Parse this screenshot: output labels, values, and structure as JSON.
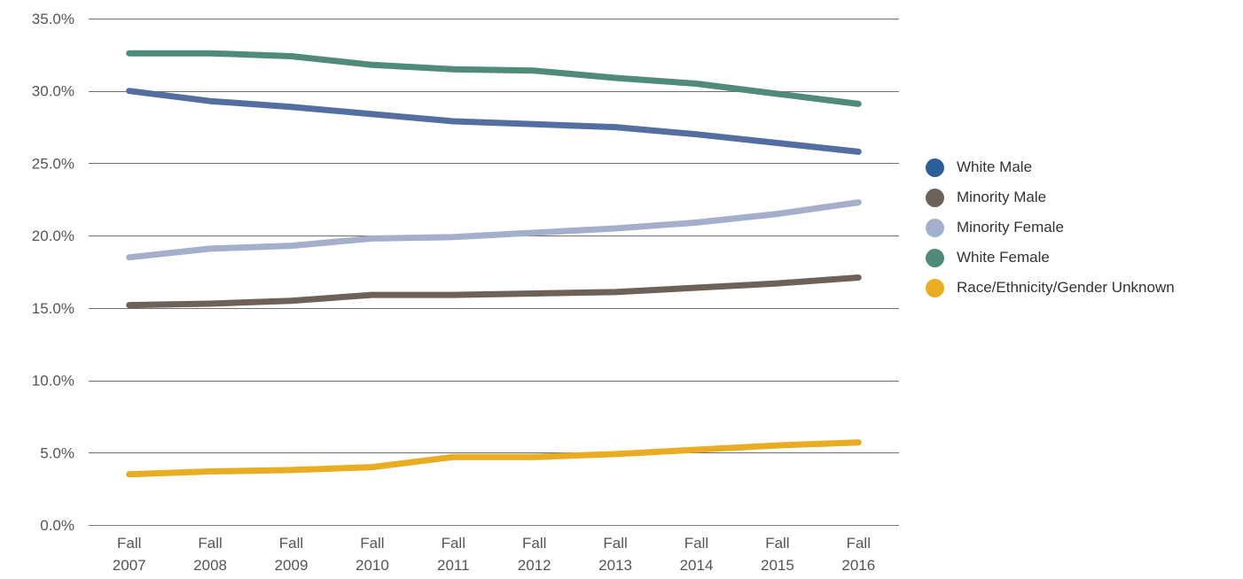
{
  "chart_data": {
    "type": "line",
    "categories": [
      [
        "Fall",
        "2007"
      ],
      [
        "Fall",
        "2008"
      ],
      [
        "Fall",
        "2009"
      ],
      [
        "Fall",
        "2010"
      ],
      [
        "Fall",
        "2011"
      ],
      [
        "Fall",
        "2012"
      ],
      [
        "Fall",
        "2013"
      ],
      [
        "Fall",
        "2014"
      ],
      [
        "Fall",
        "2015"
      ],
      [
        "Fall",
        "2016"
      ]
    ],
    "y_ticks": [
      "0.0%",
      "5.0%",
      "10.0%",
      "15.0%",
      "20.0%",
      "25.0%",
      "30.0%",
      "35.0%"
    ],
    "ylim": [
      0,
      35
    ],
    "grid": true,
    "legend_position": "right",
    "series": [
      {
        "name": "White Male",
        "color": "#536fa0",
        "legend_color": "#2d5f96",
        "values": [
          30.0,
          29.3,
          28.9,
          28.4,
          27.9,
          27.7,
          27.5,
          27.0,
          26.4,
          25.8
        ]
      },
      {
        "name": "Minority Male",
        "color": "#6e6158",
        "legend_color": "#6e6158",
        "values": [
          15.2,
          15.3,
          15.5,
          15.9,
          15.9,
          16.0,
          16.1,
          16.4,
          16.7,
          17.1
        ]
      },
      {
        "name": "Minority Female",
        "color": "#a4afcc",
        "legend_color": "#a4afcc",
        "values": [
          18.5,
          19.1,
          19.3,
          19.8,
          19.9,
          20.2,
          20.5,
          20.9,
          21.5,
          22.3
        ]
      },
      {
        "name": "White Female",
        "color": "#4f8a7b",
        "legend_color": "#4f8a7b",
        "values": [
          32.6,
          32.6,
          32.4,
          31.8,
          31.5,
          31.4,
          30.9,
          30.5,
          29.8,
          29.1
        ]
      },
      {
        "name": "Race/Ethnicity/Gender Unknown",
        "color": "#e8ad22",
        "legend_color": "#e8ad22",
        "values": [
          3.5,
          3.7,
          3.8,
          4.0,
          4.7,
          4.7,
          4.9,
          5.2,
          5.5,
          5.7
        ]
      }
    ]
  }
}
